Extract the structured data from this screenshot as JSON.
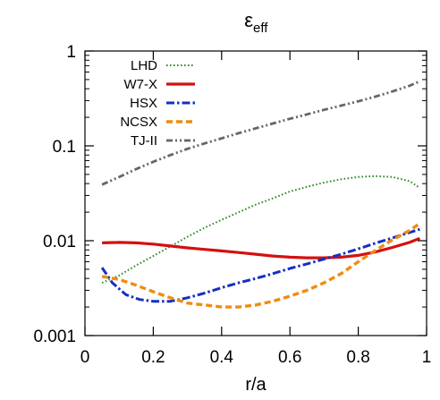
{
  "chart_data": {
    "type": "line",
    "title": "ε",
    "title_subscript": "eff",
    "xlabel": "r/a",
    "ylabel": "",
    "xlim": [
      0,
      1
    ],
    "ylim": [
      0.001,
      1
    ],
    "y_scale": "log",
    "grid": false,
    "legend_position": "top-left",
    "x_ticks": [
      {
        "value": 0,
        "label": "0"
      },
      {
        "value": 0.2,
        "label": "0.2"
      },
      {
        "value": 0.4,
        "label": "0.4"
      },
      {
        "value": 0.6,
        "label": "0.6"
      },
      {
        "value": 0.8,
        "label": "0.8"
      },
      {
        "value": 1,
        "label": "1"
      }
    ],
    "y_ticks": [
      {
        "value": 0.001,
        "label": "0.001"
      },
      {
        "value": 0.01,
        "label": "0.01"
      },
      {
        "value": 0.1,
        "label": "0.1"
      },
      {
        "value": 1,
        "label": "1"
      }
    ],
    "series": [
      {
        "name": "LHD",
        "color": "#2e8b22",
        "dash": "dotted",
        "x": [
          0.05,
          0.1,
          0.15,
          0.2,
          0.25,
          0.3,
          0.35,
          0.4,
          0.45,
          0.5,
          0.55,
          0.6,
          0.65,
          0.7,
          0.75,
          0.8,
          0.85,
          0.9,
          0.95,
          0.98
        ],
        "y": [
          0.0036,
          0.0043,
          0.0055,
          0.0069,
          0.0087,
          0.011,
          0.0137,
          0.0166,
          0.02,
          0.024,
          0.028,
          0.033,
          0.037,
          0.041,
          0.0445,
          0.047,
          0.048,
          0.047,
          0.0425,
          0.036
        ]
      },
      {
        "name": "W7-X",
        "color": "#d41010",
        "dash": "solid",
        "x": [
          0.05,
          0.1,
          0.15,
          0.2,
          0.25,
          0.3,
          0.35,
          0.4,
          0.45,
          0.5,
          0.55,
          0.6,
          0.65,
          0.7,
          0.75,
          0.8,
          0.85,
          0.9,
          0.95,
          0.98
        ],
        "y": [
          0.0095,
          0.0096,
          0.0095,
          0.0092,
          0.0088,
          0.0084,
          0.0081,
          0.0078,
          0.0075,
          0.0072,
          0.0069,
          0.0067,
          0.0066,
          0.0066,
          0.0067,
          0.007,
          0.0076,
          0.0085,
          0.0096,
          0.0106
        ]
      },
      {
        "name": "HSX",
        "color": "#1530c0",
        "dash": "dashdot",
        "x": [
          0.05,
          0.08,
          0.12,
          0.16,
          0.2,
          0.25,
          0.3,
          0.35,
          0.4,
          0.45,
          0.5,
          0.55,
          0.6,
          0.65,
          0.7,
          0.75,
          0.8,
          0.85,
          0.9,
          0.95,
          0.98
        ],
        "y": [
          0.0052,
          0.0036,
          0.0027,
          0.0024,
          0.0023,
          0.0023,
          0.0025,
          0.0028,
          0.0032,
          0.0036,
          0.004,
          0.0045,
          0.0051,
          0.0057,
          0.0064,
          0.0072,
          0.0082,
          0.0094,
          0.0107,
          0.0122,
          0.0132
        ]
      },
      {
        "name": "NCSX",
        "color": "#f08c10",
        "dash": "dashed",
        "x": [
          0.05,
          0.1,
          0.15,
          0.2,
          0.25,
          0.3,
          0.35,
          0.4,
          0.45,
          0.5,
          0.55,
          0.6,
          0.65,
          0.7,
          0.75,
          0.8,
          0.85,
          0.9,
          0.95,
          0.98
        ],
        "y": [
          0.0042,
          0.0039,
          0.0034,
          0.0029,
          0.0025,
          0.0022,
          0.0021,
          0.002,
          0.002,
          0.0021,
          0.0023,
          0.0026,
          0.003,
          0.0036,
          0.0045,
          0.006,
          0.0079,
          0.0102,
          0.0128,
          0.0152
        ]
      },
      {
        "name": "TJ-II",
        "color": "#666666",
        "dash": "dashdotdot",
        "x": [
          0.05,
          0.1,
          0.15,
          0.2,
          0.25,
          0.3,
          0.35,
          0.4,
          0.45,
          0.5,
          0.55,
          0.6,
          0.65,
          0.7,
          0.75,
          0.8,
          0.85,
          0.9,
          0.95,
          0.98
        ],
        "y": [
          0.039,
          0.047,
          0.057,
          0.068,
          0.08,
          0.093,
          0.106,
          0.12,
          0.136,
          0.153,
          0.172,
          0.193,
          0.215,
          0.24,
          0.266,
          0.295,
          0.33,
          0.375,
          0.43,
          0.48
        ]
      }
    ]
  }
}
